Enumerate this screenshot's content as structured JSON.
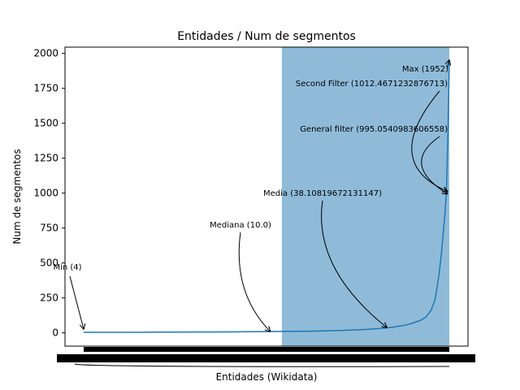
{
  "chart_data": {
    "type": "line",
    "title": "Entidades / Num de segmentos",
    "xlabel": "Entidades (Wikidata)",
    "ylabel": "Num de segmentos",
    "ylim": [
      -95,
      2045
    ],
    "y_ticks": [
      0,
      250,
      500,
      750,
      1000,
      1250,
      1500,
      1750,
      2000
    ],
    "y_tick_labels": [
      "0",
      "250",
      "500",
      "750",
      "1000",
      "1250",
      "1500",
      "1750",
      "2000"
    ],
    "x_tick_labels": "illegible (dense, overlapping category labels)",
    "grid": false,
    "line_color": "#1f77b4",
    "span_color": "#1f77b4",
    "span_opacity": 0.5,
    "highlight_span": {
      "from_fraction": 0.542,
      "to_fraction": 1.0
    },
    "series": [
      {
        "points": [
          [
            0.0,
            4
          ],
          [
            0.05,
            4
          ],
          [
            0.1,
            4
          ],
          [
            0.15,
            4
          ],
          [
            0.2,
            5
          ],
          [
            0.25,
            5
          ],
          [
            0.3,
            6
          ],
          [
            0.35,
            6
          ],
          [
            0.4,
            7
          ],
          [
            0.45,
            8
          ],
          [
            0.5,
            9
          ],
          [
            0.542,
            10
          ],
          [
            0.58,
            11
          ],
          [
            0.62,
            12
          ],
          [
            0.66,
            14
          ],
          [
            0.7,
            17
          ],
          [
            0.74,
            21
          ],
          [
            0.78,
            26
          ],
          [
            0.82,
            33
          ],
          [
            0.85,
            42
          ],
          [
            0.88,
            55
          ],
          [
            0.9,
            70
          ],
          [
            0.92,
            88
          ],
          [
            0.935,
            110
          ],
          [
            0.95,
            160
          ],
          [
            0.96,
            230
          ],
          [
            0.965,
            300
          ],
          [
            0.972,
            420
          ],
          [
            0.978,
            560
          ],
          [
            0.983,
            700
          ],
          [
            0.988,
            850
          ],
          [
            0.992,
            1000
          ],
          [
            0.996,
            1400
          ],
          [
            1.0,
            1952
          ]
        ]
      }
    ],
    "annotations": [
      {
        "text": "Max (1952)",
        "point": [
          1.0,
          1952
        ]
      },
      {
        "text": "Second Filter (1012.4671232876713)",
        "point": [
          0.995,
          1012.47
        ]
      },
      {
        "text": "General filter (995.0540983606558)",
        "point": [
          0.995,
          995.05
        ]
      },
      {
        "text": "Media (38.10819672131147)",
        "point": [
          0.829,
          38.11
        ]
      },
      {
        "text": "Mediana (10.0)",
        "point": [
          0.51,
          10
        ]
      },
      {
        "text": "Min (4)",
        "point": [
          0.0,
          4
        ]
      }
    ]
  }
}
